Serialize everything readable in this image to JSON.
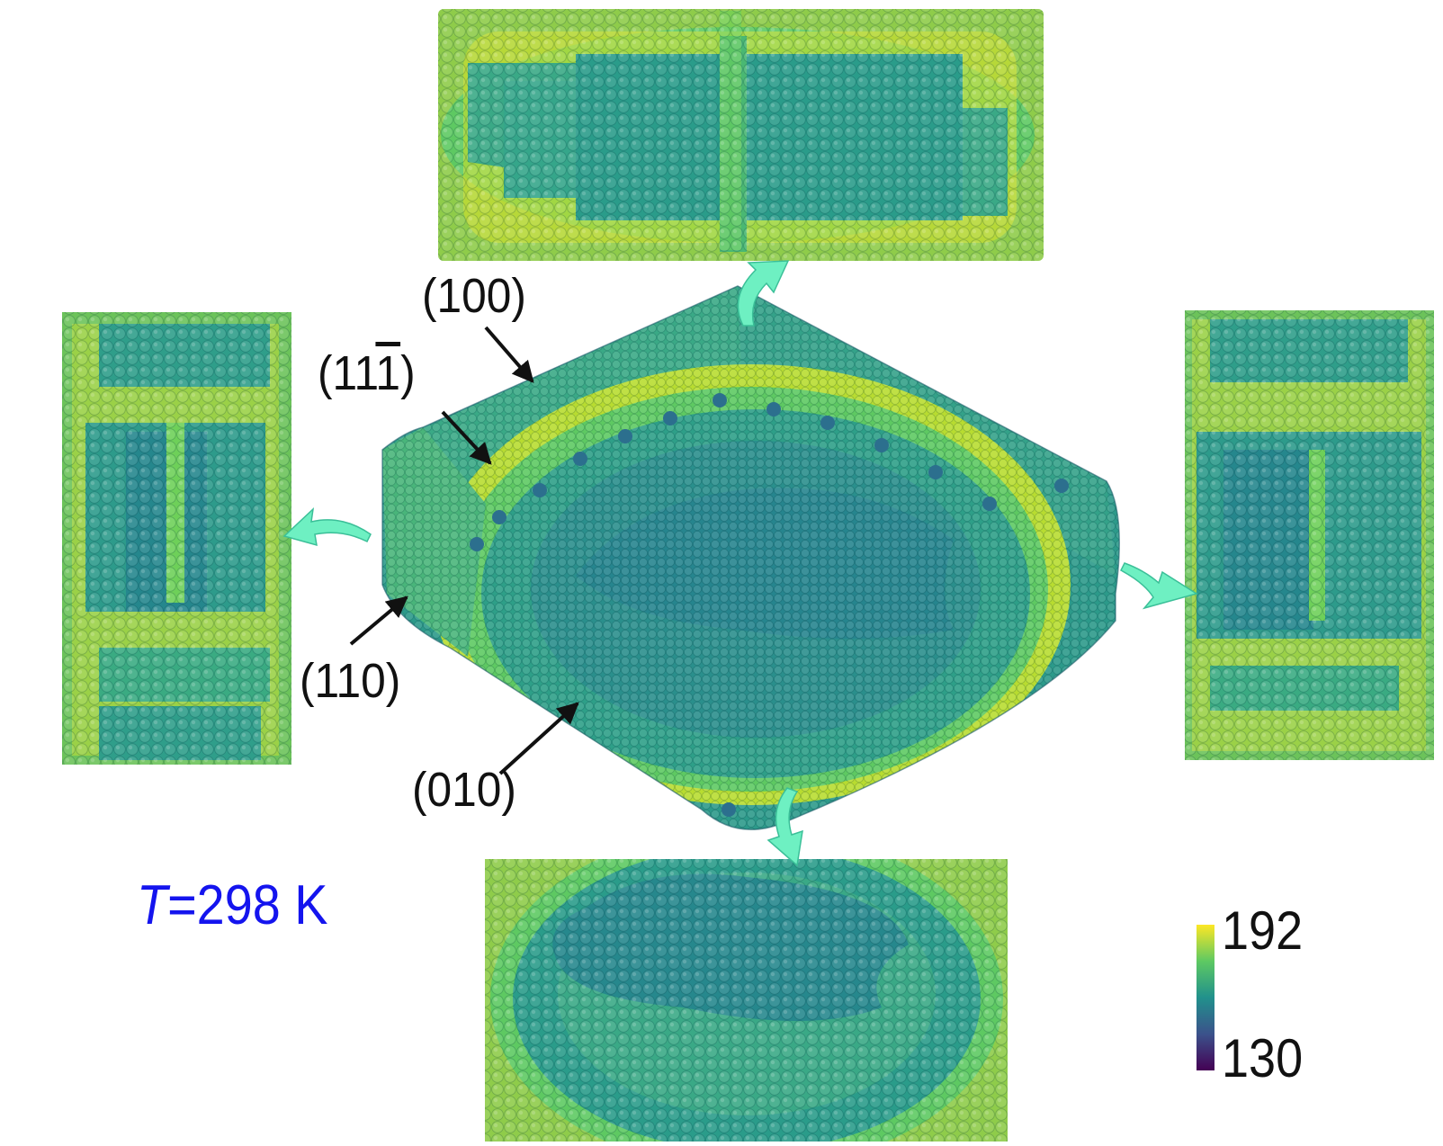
{
  "labels": {
    "face_100": "(100)",
    "face_111_prefix": "(11",
    "face_111_bar": "1",
    "face_111_suffix": ")",
    "face_110": "(110)",
    "face_010": "(010)"
  },
  "temperature": {
    "symbol": "T",
    "value": "=298 K"
  },
  "colorbar": {
    "max_label": "192",
    "min_label": "130",
    "colormap": "viridis",
    "colors": [
      "#440154",
      "#3b528b",
      "#21918c",
      "#5ec962",
      "#fde725"
    ]
  },
  "colors": {
    "arrow_cyan": "#6ef0c2",
    "label_text": "#111111",
    "temperature_text": "#1414ee"
  }
}
